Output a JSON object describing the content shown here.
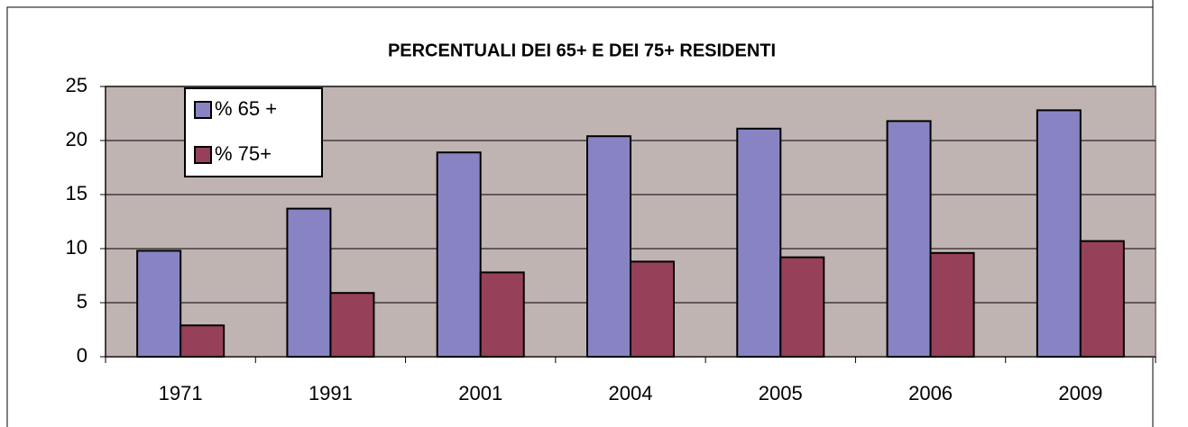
{
  "chart_data": {
    "type": "bar",
    "title": "PERCENTUALI DEI 65+ E DEI 75+ RESIDENTI",
    "categories": [
      "1971",
      "1991",
      "2001",
      "2004",
      "2005",
      "2006",
      "2009"
    ],
    "series": [
      {
        "name": "% 65 +",
        "color": "#8884c4",
        "values": [
          9.8,
          13.7,
          18.9,
          20.4,
          21.1,
          21.8,
          22.8
        ]
      },
      {
        "name": "% 75+",
        "color": "#964159",
        "values": [
          2.9,
          5.9,
          7.8,
          8.8,
          9.2,
          9.6,
          10.7
        ]
      }
    ],
    "ylim": [
      0,
      25
    ],
    "yticks": [
      0,
      5,
      10,
      15,
      20,
      25
    ],
    "grid": true
  }
}
